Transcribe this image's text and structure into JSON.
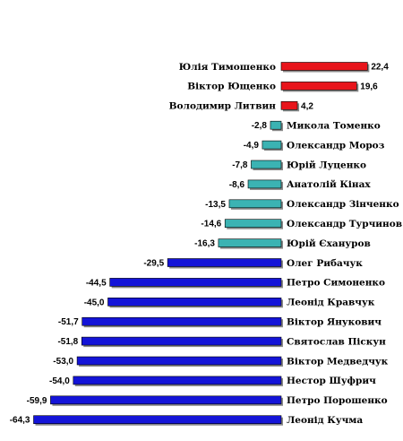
{
  "chart_data": {
    "type": "bar",
    "orientation": "horizontal",
    "title": "",
    "xlabel": "",
    "ylabel": "",
    "xlim": [
      -64.3,
      22.4
    ],
    "grid": false,
    "legend": "none",
    "colors": {
      "positive": "#e8141b",
      "small_negative": "#3bb3b3",
      "large_negative": "#1414d8"
    },
    "categories": [
      "Юлія Тимошенко",
      "Віктор Ющенко",
      "Володимир Литвин",
      "Микола Томенко",
      "Олександр Мороз",
      "Юрій Луценко",
      "Анатолій Кінах",
      "Олександр Зінченко",
      "Олександр Турчинов",
      "Юрій Єхануров",
      "Олег Рибачук",
      "Петро Симоненко",
      "Леонід Кравчук",
      "Віктор Янукович",
      "Святослав Піскун",
      "Віктор Медведчук",
      "Нестор Шуфрич",
      "Петро Порошенко",
      "Леонід Кучма"
    ],
    "values": [
      22.4,
      19.6,
      4.2,
      -2.8,
      -4.9,
      -7.8,
      -8.6,
      -13.5,
      -14.6,
      -16.3,
      -29.5,
      -44.5,
      -45.0,
      -51.7,
      -51.8,
      -53.0,
      -54.0,
      -59.9,
      -64.3
    ],
    "value_labels": [
      "22,4",
      "19,6",
      "4,2",
      "-2,8",
      "-4,9",
      "-7,8",
      "-8,6",
      "-13,5",
      "-14,6",
      "-16,3",
      "-29,5",
      "-44,5",
      "-45,0",
      "-51,7",
      "-51,8",
      "-53,0",
      "-54,0",
      "-59,9",
      "-64,3"
    ]
  }
}
